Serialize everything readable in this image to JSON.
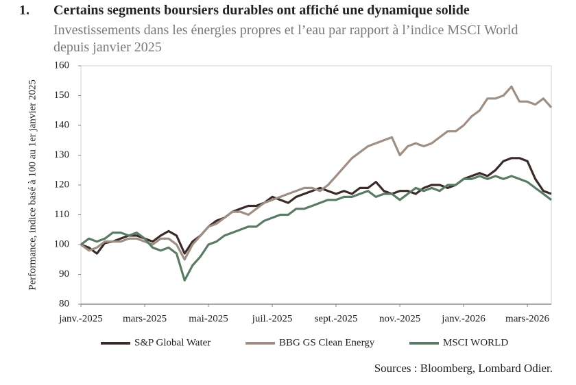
{
  "number": "1.",
  "chart_data": {
    "type": "line",
    "title": "Certains segments boursiers durables ont affiché une dynamique solide",
    "subtitle": "Investissements dans les énergies propres et l’eau par rapport à l’indice MSCI World depuis janvier 2025",
    "y_label": "Performance, indice basé à 100 au 1er janvier 2025",
    "source": "Sources : Bloomberg, Lombard Odier.",
    "categories": [
      "janv.-2025",
      null,
      null,
      null,
      null,
      null,
      null,
      null,
      "mars-2025",
      null,
      null,
      null,
      null,
      null,
      null,
      null,
      "mai-2025",
      null,
      null,
      null,
      null,
      null,
      null,
      null,
      "juil.-2025",
      null,
      null,
      null,
      null,
      null,
      null,
      null,
      "sept.-2025",
      null,
      null,
      null,
      null,
      null,
      null,
      null,
      "nov.-2025",
      null,
      null,
      null,
      null,
      null,
      null,
      null,
      "janv.-2026",
      null,
      null,
      null,
      null,
      null,
      null,
      null,
      "mars-2026",
      null,
      null,
      null
    ],
    "series": [
      {
        "name": "S&P Global Water",
        "color": "#3a2a28",
        "values": [
          100,
          99,
          97,
          100.5,
          101,
          102,
          103,
          103,
          102,
          101,
          103,
          104.5,
          103,
          97,
          101,
          103,
          106,
          108,
          109,
          111,
          112,
          113,
          113,
          114,
          116,
          115,
          114,
          116,
          117,
          118,
          119,
          118,
          117,
          118,
          117,
          119,
          119,
          121,
          118,
          117,
          118,
          118,
          117,
          119,
          120,
          120,
          119,
          120,
          122,
          123,
          124,
          123,
          125,
          128,
          129,
          129,
          128,
          122,
          118,
          117
        ]
      },
      {
        "name": "BBG GS Clean Energy",
        "color": "#9e8e84",
        "values": [
          100,
          98,
          99,
          101,
          101,
          101,
          102,
          102,
          101,
          100,
          102,
          102,
          100,
          95,
          100,
          103,
          106,
          107,
          109,
          111,
          111,
          110,
          112,
          114,
          115,
          116,
          117,
          118,
          119,
          119,
          118,
          120,
          123,
          126,
          129,
          131,
          133,
          134,
          135,
          136,
          130,
          133,
          134,
          133,
          134,
          136,
          138,
          138,
          140,
          143,
          145,
          149,
          149,
          150,
          153,
          148,
          148,
          147,
          149,
          146
        ]
      },
      {
        "name": "MSCI WORLD",
        "color": "#5a7a66",
        "values": [
          100,
          102,
          101,
          102,
          104,
          104,
          103,
          104,
          102,
          99,
          98,
          99,
          97,
          88,
          93,
          96,
          100,
          101,
          103,
          104,
          105,
          106,
          106,
          108,
          109,
          110,
          110,
          112,
          112,
          113,
          114,
          115,
          115,
          116,
          116,
          117,
          118,
          116,
          117,
          117,
          115,
          117,
          119,
          118,
          119,
          118,
          120,
          120,
          122,
          122,
          123,
          122,
          123,
          122,
          123,
          122,
          121,
          119,
          117,
          115
        ]
      }
    ],
    "ylim": [
      80,
      160
    ],
    "yticks": [
      80,
      90,
      100,
      110,
      120,
      130,
      140,
      150,
      160
    ]
  }
}
